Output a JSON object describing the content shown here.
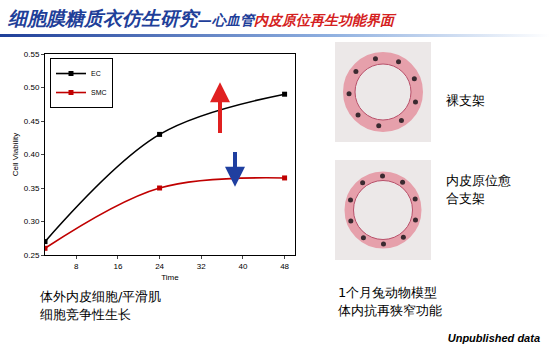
{
  "chart_data": {
    "type": "line",
    "x_label": "Time",
    "y_label": "Cell Viability",
    "x": [
      2,
      24,
      48
    ],
    "series": [
      {
        "name": "EC",
        "color": "#000000",
        "values": [
          0.27,
          0.43,
          0.49
        ]
      },
      {
        "name": "SMC",
        "color": "#c00000",
        "values": [
          0.26,
          0.35,
          0.365
        ]
      }
    ],
    "xlim": [
      2,
      50
    ],
    "xticks": [
      8,
      16,
      24,
      32,
      40,
      48
    ],
    "ylim": [
      0.25,
      0.55
    ],
    "yticks": [
      0.25,
      {
        "value": 0.3,
        "label": "0.30"
      },
      0.35,
      {
        "value": 0.4,
        "label": "0.40"
      },
      0.45,
      {
        "value": 0.5,
        "label": "0.50"
      },
      0.55
    ],
    "legend": "top left",
    "grid": false,
    "marker": "square"
  },
  "slide": {
    "title": "细胞膜糖质衣仿生研究",
    "subtitle_prefix": "—心血管",
    "subtitle_highlight": "内皮原位再生功能界面",
    "chart_caption": [
      "体外内皮细胞/平滑肌",
      "细胞竞争性生长"
    ],
    "image_labels": [
      [
        "裸支架"
      ],
      [
        "内皮原位愈",
        "合支架"
      ]
    ],
    "image_caption": [
      "1个月兔动物模型",
      "体内抗再狭窄功能"
    ],
    "note": "Unpublished data"
  }
}
